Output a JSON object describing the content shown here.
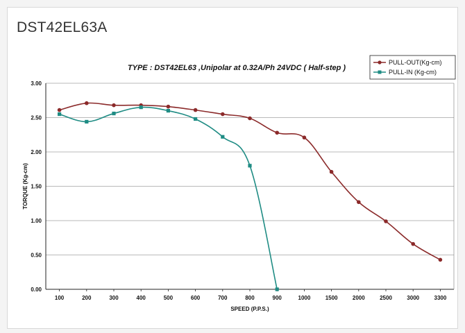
{
  "page_title": "DST42EL63A",
  "chart_data": {
    "type": "line",
    "title": "TYPE : DST42EL63 ,Unipolar at 0.32A/Ph 24VDC  ( Half-step )",
    "xlabel": "SPEED (P.P.S.)",
    "ylabel": "TORQUE (Kg-cm)",
    "categories": [
      "100",
      "200",
      "300",
      "400",
      "500",
      "600",
      "700",
      "800",
      "900",
      "1000",
      "1500",
      "2000",
      "2500",
      "3000",
      "3300"
    ],
    "ylim": [
      0,
      3
    ],
    "yticks": [
      "0.00",
      "0.50",
      "1.00",
      "1.50",
      "2.00",
      "2.50",
      "3.00"
    ],
    "grid": "horizontal",
    "legend_position": "top-right",
    "series": [
      {
        "name": "PULL-OUT(Kg-cm)",
        "color": "#8b2a2a",
        "marker": "circle",
        "values": [
          2.61,
          2.71,
          2.68,
          2.68,
          2.66,
          2.61,
          2.55,
          2.49,
          2.28,
          2.21,
          1.71,
          1.27,
          0.99,
          0.66,
          0.43
        ]
      },
      {
        "name": "PULL-IN  (Kg-cm)",
        "color": "#1f8c84",
        "marker": "square",
        "values": [
          2.55,
          2.44,
          2.56,
          2.65,
          2.6,
          2.48,
          2.22,
          1.8,
          0.0,
          null,
          null,
          null,
          null,
          null,
          null
        ]
      }
    ]
  }
}
